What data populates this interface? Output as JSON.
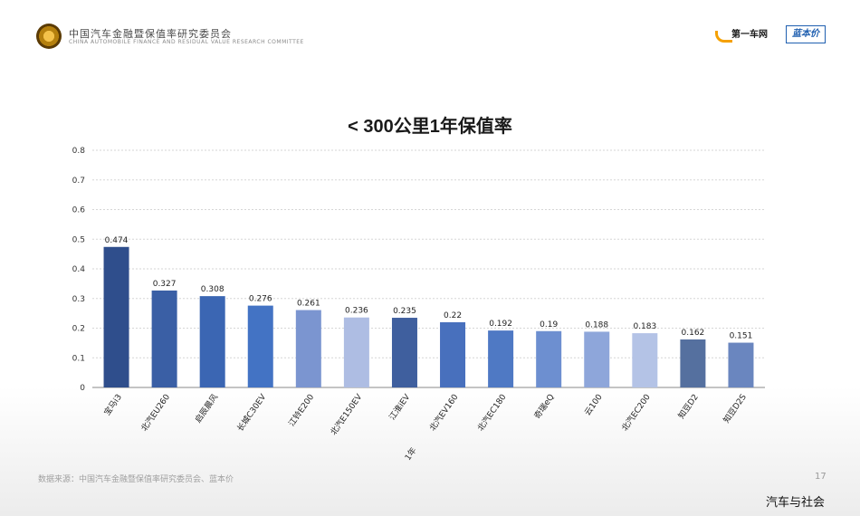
{
  "header": {
    "org_name": "中国汽车金融暨保值率研究委员会",
    "org_sub": "CHINA AUTOMOBILE FINANCE AND RESIDUAL VALUE RESEARCH COMMITTEE",
    "brand1": "第一车网",
    "brand2": "蓝本价"
  },
  "footer": {
    "source": "数据来源：中国汽车金融暨保值率研究委员会、蓝本价",
    "page": "17",
    "watermark": "汽车与社会"
  },
  "chart_data": {
    "type": "bar",
    "title": "< 300公里1年保值率",
    "xlabel": "1年",
    "ylabel": "",
    "ylim": [
      0,
      0.8
    ],
    "yticks": [
      "0",
      "0.1",
      "0.2",
      "0.3",
      "0.4",
      "0.5",
      "0.6",
      "0.7",
      "0.8"
    ],
    "grid": true,
    "categories": [
      "宝马i3",
      "北汽EU260",
      "启辰晨风",
      "长城C30EV",
      "江铃E200",
      "北汽E150EV",
      "江淮iEV",
      "北汽EV160",
      "北汽EC180",
      "奇瑞eQ",
      "云100",
      "北汽EC200",
      "知豆D2",
      "知豆D2S"
    ],
    "values": [
      0.474,
      0.327,
      0.308,
      0.276,
      0.261,
      0.236,
      0.235,
      0.22,
      0.192,
      0.19,
      0.188,
      0.183,
      0.162,
      0.151
    ],
    "value_labels": [
      "0.474",
      "0.327",
      "0.308",
      "0.276",
      "0.261",
      "0.236",
      "0.235",
      "0.22",
      "0.192",
      "0.19",
      "0.188",
      "0.183",
      "0.162",
      "0.151"
    ],
    "colors": [
      "#2f4e8c",
      "#3a5fa5",
      "#3b66b3",
      "#4373c4",
      "#7b95d0",
      "#aebde3",
      "#3f5f9e",
      "#4870bd",
      "#4f79c4",
      "#6d8fd0",
      "#8ea6da",
      "#b4c3e6",
      "#55709f",
      "#6a86bf"
    ]
  }
}
